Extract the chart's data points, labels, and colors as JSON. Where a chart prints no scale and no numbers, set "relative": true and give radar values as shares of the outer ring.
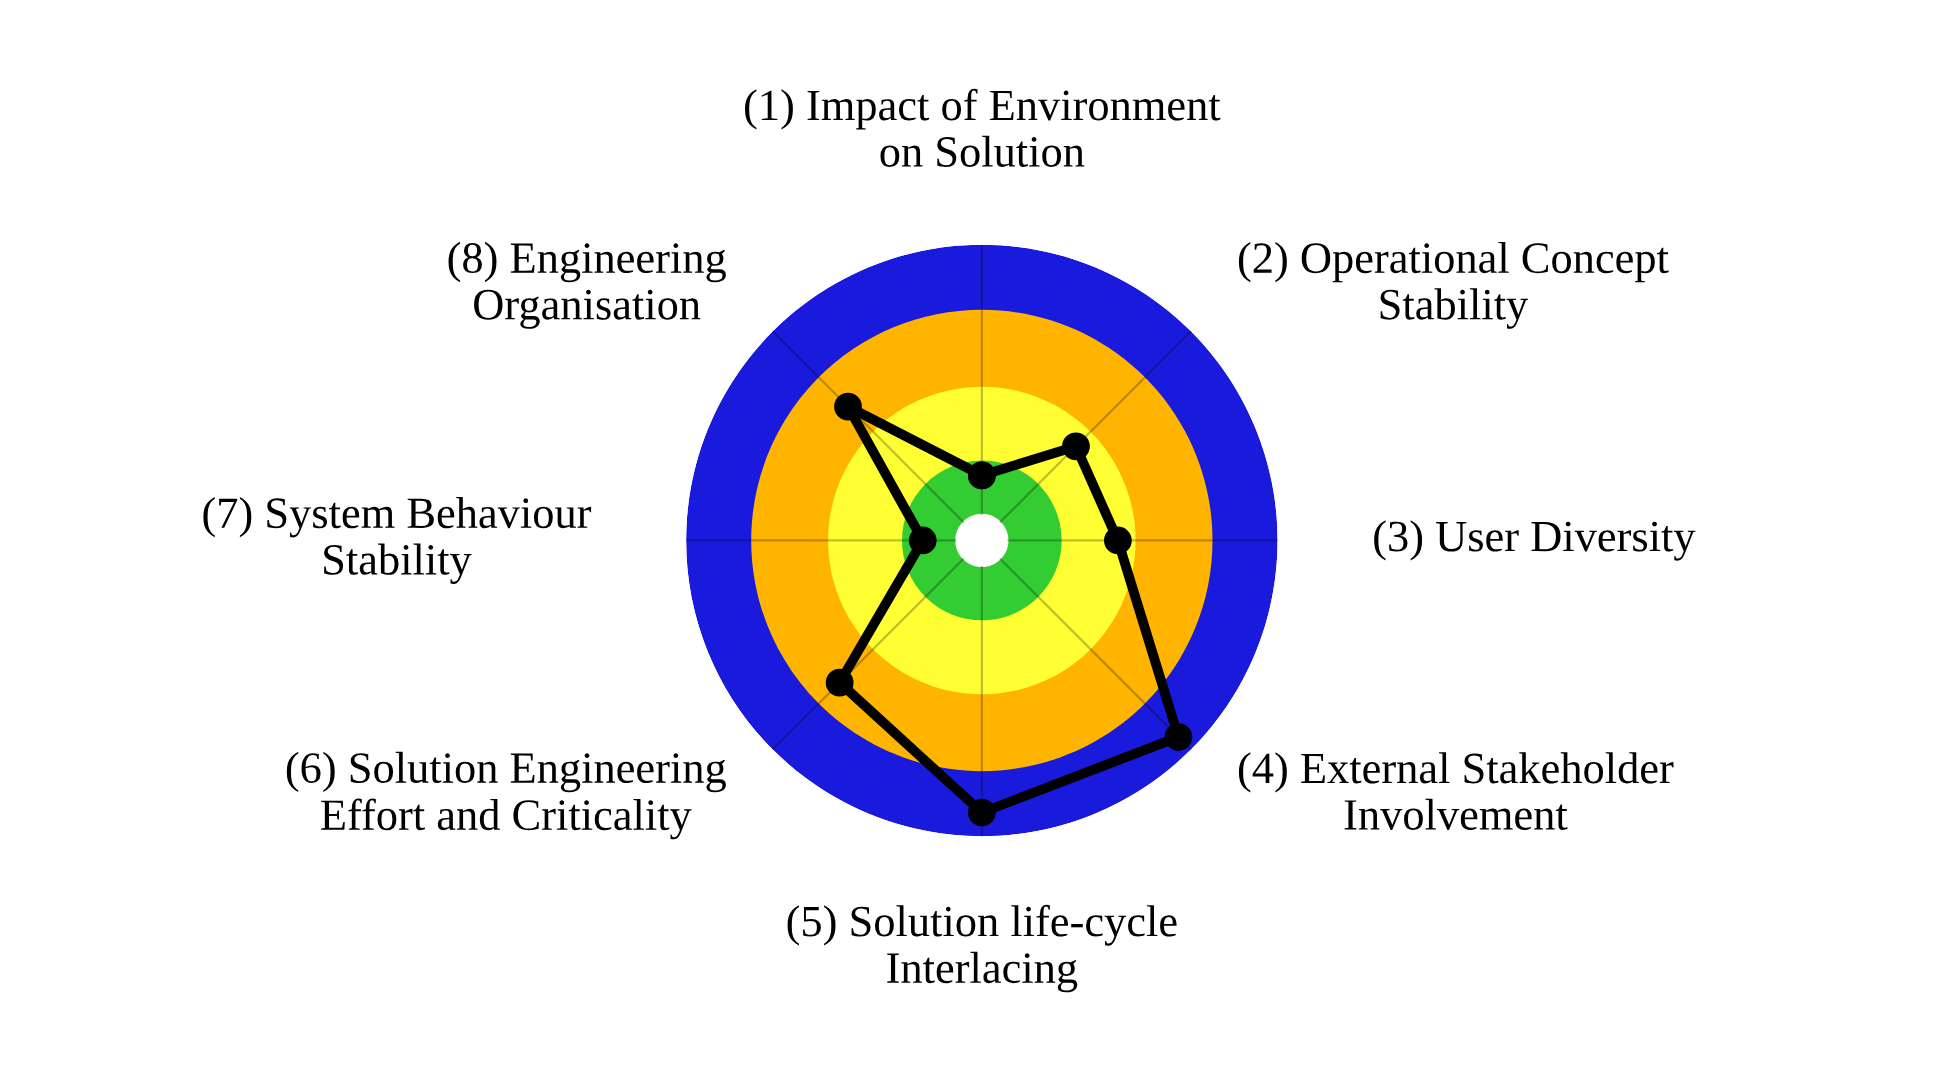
{
  "chart_data": {
    "type": "radar",
    "relative": true,
    "categories": [
      "(1) Impact of Environment\non Solution",
      "(2) Operational Concept\nStability",
      "(3) User Diversity",
      "(4) External Stakeholder\nInvolvement",
      "(5) Solution life-cycle\nInterlacing",
      "(6) Solution Engineering\nEffort and Criticality",
      "(7) System Behaviour\nStability",
      "(8) Engineering\nOrganisation"
    ],
    "series": [
      {
        "color": "#000000",
        "values": [
          0.22,
          0.45,
          0.46,
          0.94,
          0.92,
          0.68,
          0.2,
          0.64
        ]
      }
    ],
    "grid": true,
    "marker": "circle",
    "line_style": "solid",
    "legend": false
  }
}
